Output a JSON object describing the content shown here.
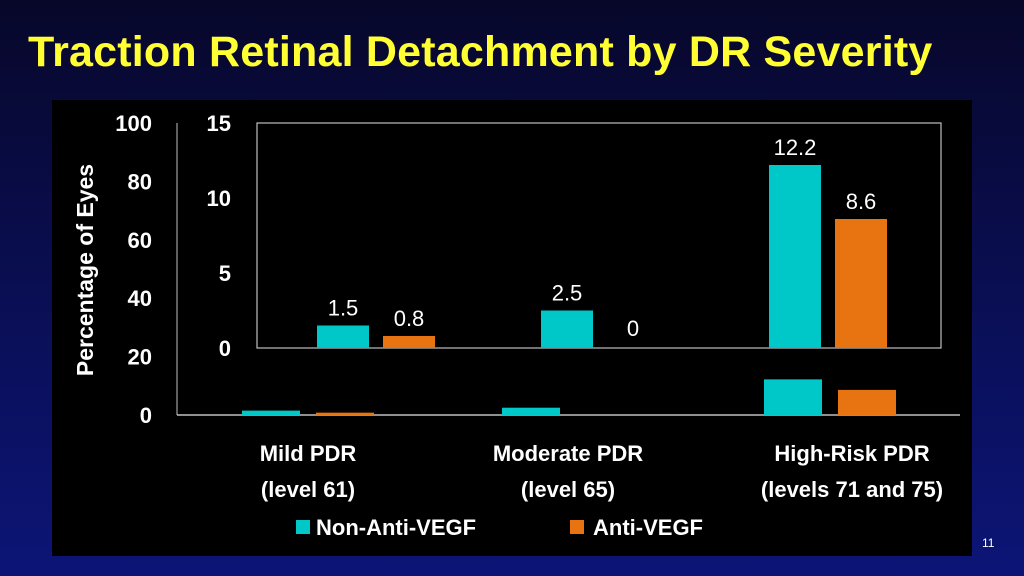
{
  "slide": {
    "title": "Traction Retinal Detachment by DR Severity",
    "page_number": "11"
  },
  "colors": {
    "title": "#ffff33",
    "panel_bg": "#000000",
    "non_anti_vegf": "#00c8c8",
    "anti_vegf": "#e87311",
    "text": "#ffffff"
  },
  "chart_data": [
    {
      "type": "bar",
      "role": "outer-chart",
      "ylabel": "Percentage of Eyes",
      "ylim": [
        0,
        100
      ],
      "yticks": [
        "0",
        "20",
        "40",
        "60",
        "80",
        "100"
      ],
      "categories": [
        "Mild PDR\n(level 61)",
        "Moderate PDR\n(level 65)",
        "High-Risk PDR\n(levels 71 and 75)"
      ],
      "category_lines": [
        [
          "Mild PDR",
          "(level 61)"
        ],
        [
          "Moderate PDR",
          "(level 65)"
        ],
        [
          "High-Risk PDR",
          "(levels 71 and 75)"
        ]
      ],
      "series": [
        {
          "name": "Non-Anti-VEGF",
          "color": "#00c8c8",
          "values": [
            1.5,
            2.5,
            12.2
          ]
        },
        {
          "name": "Anti-VEGF",
          "color": "#e87311",
          "values": [
            0.8,
            0,
            8.6
          ]
        }
      ],
      "legend": {
        "position": "bottom",
        "entries": [
          "Non-Anti-VEGF",
          "Anti-VEGF"
        ]
      },
      "grid": false
    },
    {
      "type": "bar",
      "role": "zoomed-inset",
      "ylim": [
        0,
        15
      ],
      "yticks": [
        "0",
        "5",
        "10",
        "15"
      ],
      "categories": [
        "Mild PDR",
        "Moderate PDR",
        "High-Risk PDR"
      ],
      "series": [
        {
          "name": "Non-Anti-VEGF",
          "color": "#00c8c8",
          "values": [
            1.5,
            2.5,
            12.2
          ],
          "labels": [
            "1.5",
            "2.5",
            "12.2"
          ]
        },
        {
          "name": "Anti-VEGF",
          "color": "#e87311",
          "values": [
            0.8,
            0,
            8.6
          ],
          "labels": [
            "0.8",
            "0",
            "8.6"
          ]
        }
      ],
      "grid": false
    }
  ]
}
